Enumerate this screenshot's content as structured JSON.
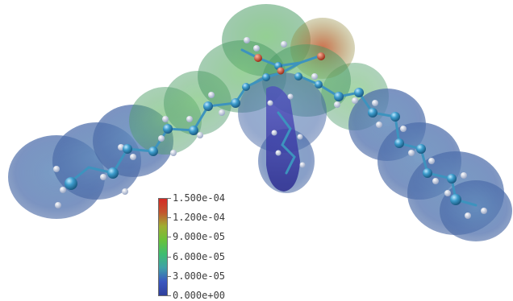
{
  "colormap": {
    "stops": [
      "#2f3f9b",
      "#3a57c0",
      "#3fa0a8",
      "#3dbd70",
      "#69c13a",
      "#9fae32",
      "#c2562e",
      "#d42a24"
    ]
  },
  "colorbar": {
    "ticks": [
      "1.500e-04",
      "1.200e-04",
      "9.000e-05",
      "6.000e-05",
      "3.000e-05",
      "0.000e+00"
    ]
  },
  "molecule": {
    "atom_color": "#4aa0c8",
    "hydrogen_color": "#d8dfee",
    "oxygen_color": "#c0452e",
    "surface_blue": "#4a70b0",
    "surface_green": "#52a558",
    "surface_red": "#c15a35"
  }
}
